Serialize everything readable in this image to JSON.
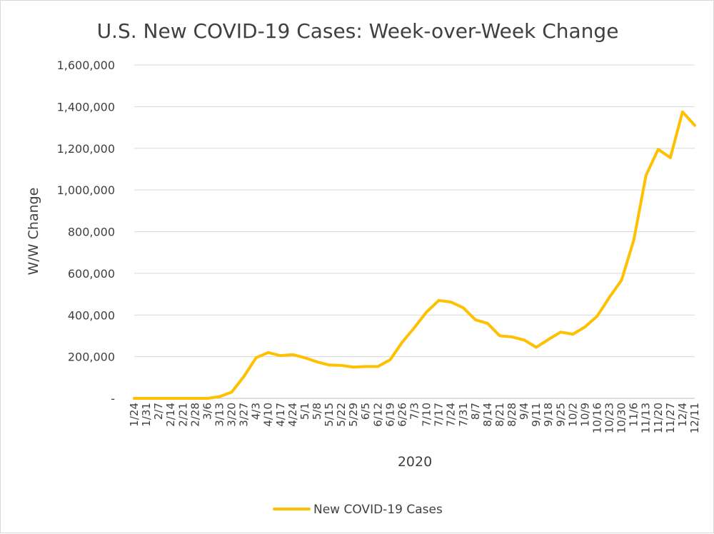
{
  "chart_data": {
    "type": "line",
    "title": "U.S. New COVID-19 Cases: Week-over-Week Change",
    "xlabel": "2020",
    "ylabel": "W/W Change",
    "ylim": [
      0,
      1600000
    ],
    "y_ticks": [
      0,
      200000,
      400000,
      600000,
      800000,
      1000000,
      1200000,
      1400000,
      1600000
    ],
    "y_tick_labels": [
      "-",
      "200,000",
      "400,000",
      "600,000",
      "800,000",
      "1,000,000",
      "1,200,000",
      "1,400,000",
      "1,600,000"
    ],
    "x": [
      "1/24",
      "1/31",
      "2/7",
      "2/14",
      "2/21",
      "2/28",
      "3/6",
      "3/13",
      "3/20",
      "3/27",
      "4/3",
      "4/10",
      "4/17",
      "4/24",
      "5/1",
      "5/8",
      "5/15",
      "5/22",
      "5/29",
      "6/5",
      "6/12",
      "6/19",
      "6/26",
      "7/3",
      "7/10",
      "7/17",
      "7/24",
      "7/31",
      "8/7",
      "8/14",
      "8/21",
      "8/28",
      "9/4",
      "9/11",
      "9/18",
      "9/25",
      "10/2",
      "10/9",
      "10/16",
      "10/23",
      "10/30",
      "11/6",
      "11/13",
      "11/20",
      "11/27",
      "12/4",
      "12/11"
    ],
    "series": [
      {
        "name": "New COVID-19 Cases",
        "color": "#ffc000",
        "values": [
          1,
          3,
          5,
          5,
          5,
          5,
          8,
          8000,
          30000,
          105000,
          195000,
          220000,
          205000,
          210000,
          195000,
          175000,
          160000,
          158000,
          150000,
          153000,
          153000,
          185000,
          270000,
          340000,
          415000,
          470000,
          462000,
          435000,
          377000,
          360000,
          300000,
          295000,
          280000,
          245000,
          283000,
          318000,
          308000,
          343000,
          395000,
          485000,
          568000,
          760000,
          1070000,
          1195000,
          1155000,
          1375000,
          1310000
        ]
      }
    ],
    "grid": true,
    "legend_position": "bottom"
  }
}
